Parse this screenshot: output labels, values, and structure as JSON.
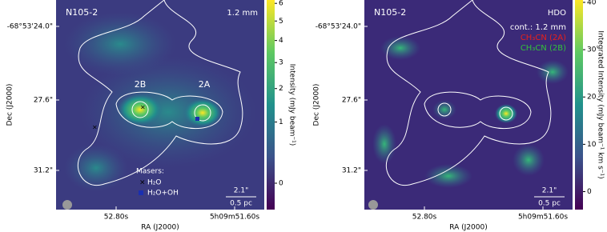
{
  "panels": [
    {
      "title": "N105-2",
      "label": "1.2 mm",
      "ylabel": "Dec (J2000)",
      "xlabel": "RA (J2000)",
      "yticks": [
        "-68°53'24.0\"",
        "27.6\"",
        "31.2\""
      ],
      "xticks": [
        "52.80s",
        "5h09m51.60s"
      ],
      "sources": [
        "2B",
        "2A"
      ],
      "legend_title": "Masers:",
      "legend": [
        "H₂O",
        "H₂O+OH"
      ],
      "scalebar": [
        "2.1\"",
        "0.5 pc"
      ],
      "colorbar": {
        "label": "Intensity (mJy beam⁻¹)",
        "scale": "sqrt",
        "clim": [
          -0.1,
          6.2
        ],
        "ticks": [
          0,
          1,
          2,
          3,
          4,
          5,
          6
        ]
      }
    },
    {
      "title": "N105-2",
      "label": "HDO",
      "lines": [
        {
          "text": "cont.: 1.2 mm",
          "color": "#ffffff"
        },
        {
          "text": "CH₃CN (2A)",
          "color": "#e8201a"
        },
        {
          "text": "CH₃CN (2B)",
          "color": "#33c23a"
        }
      ],
      "ylabel": "Dec (J2000)",
      "xlabel": "RA (J2000)",
      "yticks": [
        "-68°53'24.0\"",
        "27.6\"",
        "31.2\""
      ],
      "xticks": [
        "52.80s",
        "5h09m51.60s"
      ],
      "scalebar": [
        "2.1\"",
        "0.5 pc"
      ],
      "colorbar": {
        "label": "Integrated Intensity (mJy beam⁻¹ km s⁻¹)",
        "scale": "linear",
        "clim": [
          -3.8,
          40.5
        ],
        "ticks": [
          0,
          10,
          20,
          30,
          40
        ]
      }
    }
  ]
}
